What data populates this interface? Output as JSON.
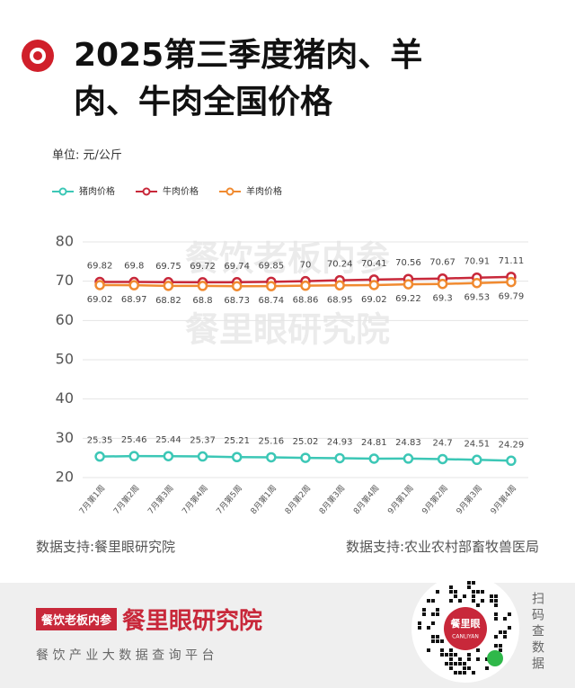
{
  "header": {
    "title": "2025第三季度猪肉、羊肉、牛肉全国价格"
  },
  "chart_data": {
    "type": "line",
    "unit_label": "单位: 元/公斤",
    "categories": [
      "7月第1周",
      "7月第2周",
      "7月第3周",
      "7月第4周",
      "7月第5周",
      "8月第1周",
      "8月第2周",
      "8月第3周",
      "8月第4周",
      "9月第1周",
      "9月第2周",
      "9月第3周",
      "9月第4周"
    ],
    "series": [
      {
        "name": "猪肉价格",
        "color": "#3cc7b6",
        "values": [
          25.35,
          25.46,
          25.44,
          25.37,
          25.21,
          25.16,
          25.02,
          24.93,
          24.81,
          24.83,
          24.7,
          24.51,
          24.29
        ]
      },
      {
        "name": "牛肉价格",
        "color": "#c8283a",
        "values": [
          69.82,
          69.8,
          69.75,
          69.72,
          69.74,
          69.85,
          70,
          70.24,
          70.41,
          70.56,
          70.67,
          70.91,
          71.11
        ]
      },
      {
        "name": "羊肉价格",
        "color": "#f08a30",
        "values": [
          69.02,
          68.97,
          68.82,
          68.8,
          68.73,
          68.74,
          68.86,
          68.95,
          69.02,
          69.22,
          69.3,
          69.53,
          69.79
        ]
      }
    ],
    "ylim": [
      20,
      80
    ],
    "yticks": [
      20,
      30,
      40,
      50,
      60,
      70,
      80
    ],
    "grid": true,
    "legend": "top-left",
    "watermarks": [
      "餐饮老板内参",
      "餐里眼研究院"
    ]
  },
  "sources": [
    "数据支持:餐里眼研究院",
    "数据支持:农业农村部畜牧兽医局"
  ],
  "footer": {
    "logo_text": "餐饮老板内参",
    "brand": "餐里眼研究院",
    "slogan": "餐 饮 产 业 大 数 据 查 询 平 台",
    "qr_center": "餐里眼",
    "qr_sub": "CANLIYAN",
    "qr_hint": "扫码查数据"
  }
}
